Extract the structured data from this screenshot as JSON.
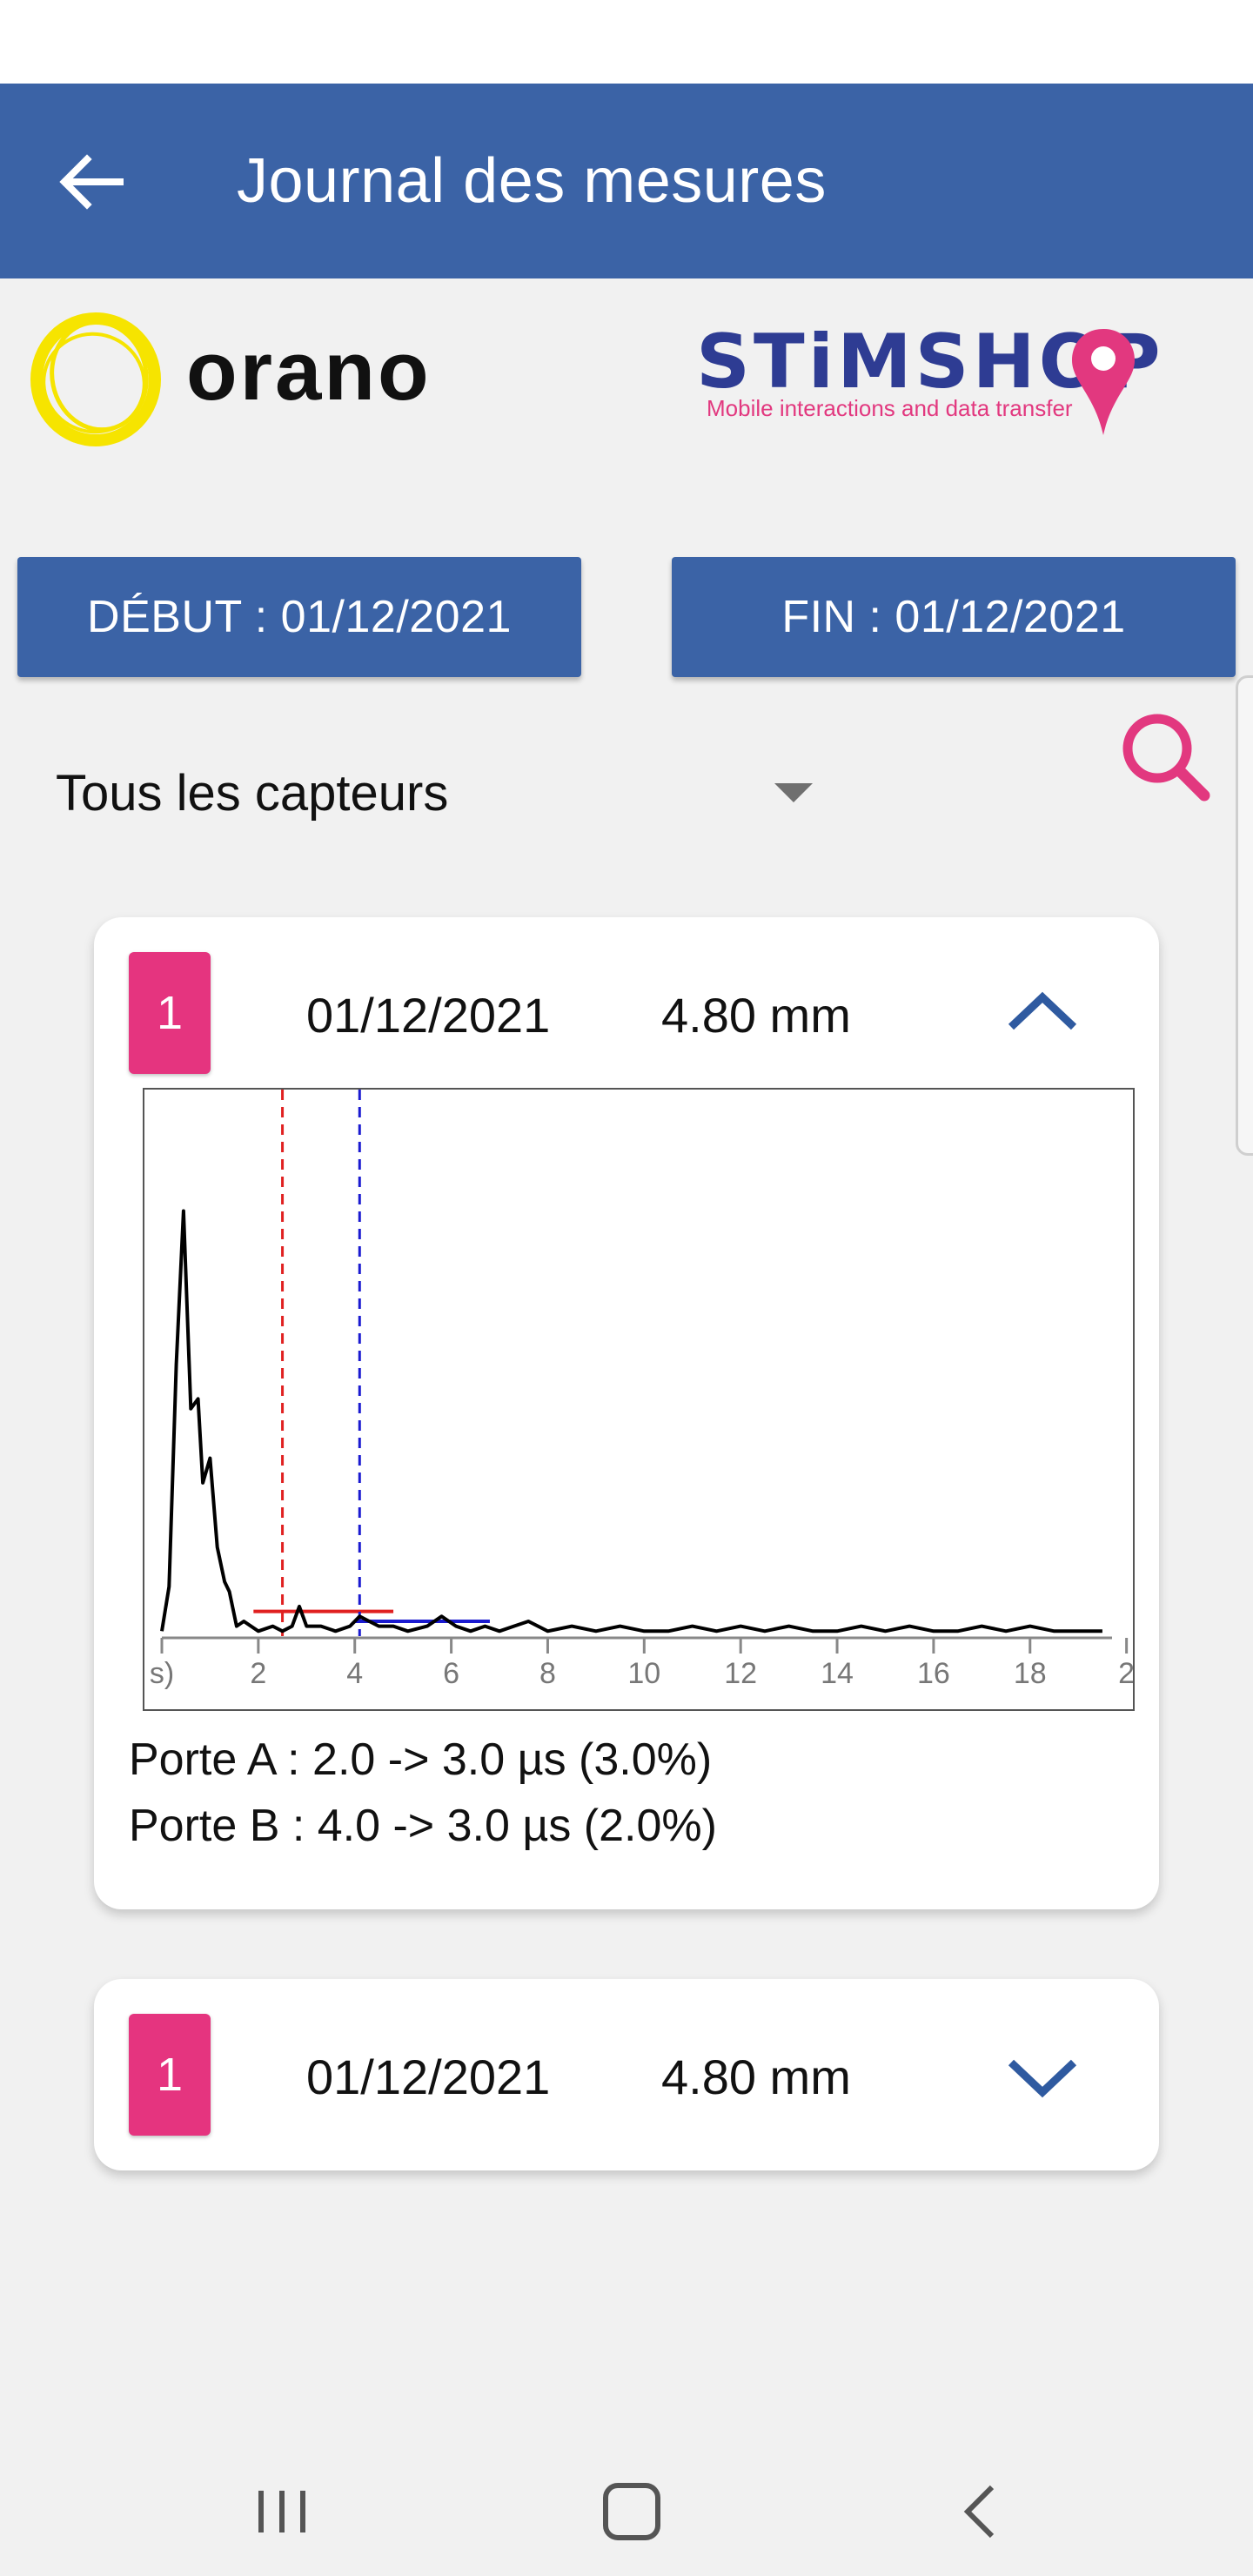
{
  "app_bar": {
    "title": "Journal des mesures",
    "back_icon": "arrow-left-icon",
    "color": "#3b63a6"
  },
  "logos": {
    "orano": {
      "text": "orano",
      "ring_color": "#f6e400"
    },
    "stimshop": {
      "wordmark": "STiMSHOP",
      "tagline": "Mobile interactions and data transfer",
      "color": "#2e3c93",
      "accent": "#e2387f"
    }
  },
  "filters": {
    "start_label": "DÉBUT : 01/12/2021",
    "end_label": "FIN : 01/12/2021",
    "sensor_select": "Tous les capteurs",
    "search_icon": "search-icon",
    "search_color": "#e2387f"
  },
  "measures": [
    {
      "sensor": "1",
      "date": "01/12/2021",
      "value": "4.80 mm",
      "expanded": true,
      "gate_a": "Porte A : 2.0 -> 3.0 µs (3.0%)",
      "gate_b": "Porte B : 4.0 -> 3.0 µs (2.0%)"
    },
    {
      "sensor": "1",
      "date": "01/12/2021",
      "value": "4.80 mm",
      "expanded": false
    }
  ],
  "chart_data": {
    "type": "line",
    "x_tick_labels": [
      "s)",
      "2",
      "4",
      "6",
      "8",
      "10",
      "12",
      "14",
      "16",
      "18",
      "2"
    ],
    "xlim": [
      0,
      19.7
    ],
    "ylim": [
      0,
      100
    ],
    "series": [
      {
        "color": "#000000",
        "x": [
          0.0,
          0.15,
          0.3,
          0.45,
          0.6,
          0.75,
          0.85,
          1.0,
          1.15,
          1.3,
          1.4,
          1.55,
          1.7,
          2.0,
          2.3,
          2.5,
          2.7,
          2.85,
          3.0,
          3.3,
          3.6,
          3.9,
          4.1,
          4.3,
          4.5,
          4.8,
          5.1,
          5.5,
          5.8,
          6.1,
          6.4,
          6.7,
          7.0,
          7.3,
          7.6,
          8.0,
          8.5,
          9.0,
          9.5,
          10.0,
          10.5,
          11.0,
          11.5,
          12.0,
          12.5,
          13.0,
          13.5,
          14.0,
          14.5,
          15.0,
          15.5,
          16.0,
          16.5,
          17.0,
          17.5,
          18.0,
          18.5,
          19.0,
          19.5
        ],
        "y": [
          1,
          10,
          55,
          86,
          46,
          48,
          31,
          36,
          18,
          11,
          9,
          2,
          3,
          1,
          2,
          1,
          2,
          6,
          2,
          2,
          1,
          2,
          4,
          3,
          2,
          2,
          1,
          2,
          4,
          2,
          1,
          2,
          1,
          2,
          3,
          1,
          2,
          1,
          2,
          1,
          1,
          2,
          1,
          2,
          1,
          2,
          1,
          1,
          2,
          1,
          2,
          1,
          1,
          2,
          1,
          2,
          1,
          1,
          1
        ]
      }
    ],
    "gates": [
      {
        "name": "Porte A",
        "color": "#e02020",
        "marker_x": 2.5,
        "from_x": 1.9,
        "to_x": 4.8,
        "level": 5
      },
      {
        "name": "Porte B",
        "color": "#1a1ad0",
        "marker_x": 4.1,
        "from_x": 4.0,
        "to_x": 6.8,
        "level": 3
      }
    ],
    "grid": false
  },
  "nav": {
    "recent_icon": "recent-apps-icon",
    "home_icon": "home-icon",
    "back_icon": "back-icon"
  }
}
